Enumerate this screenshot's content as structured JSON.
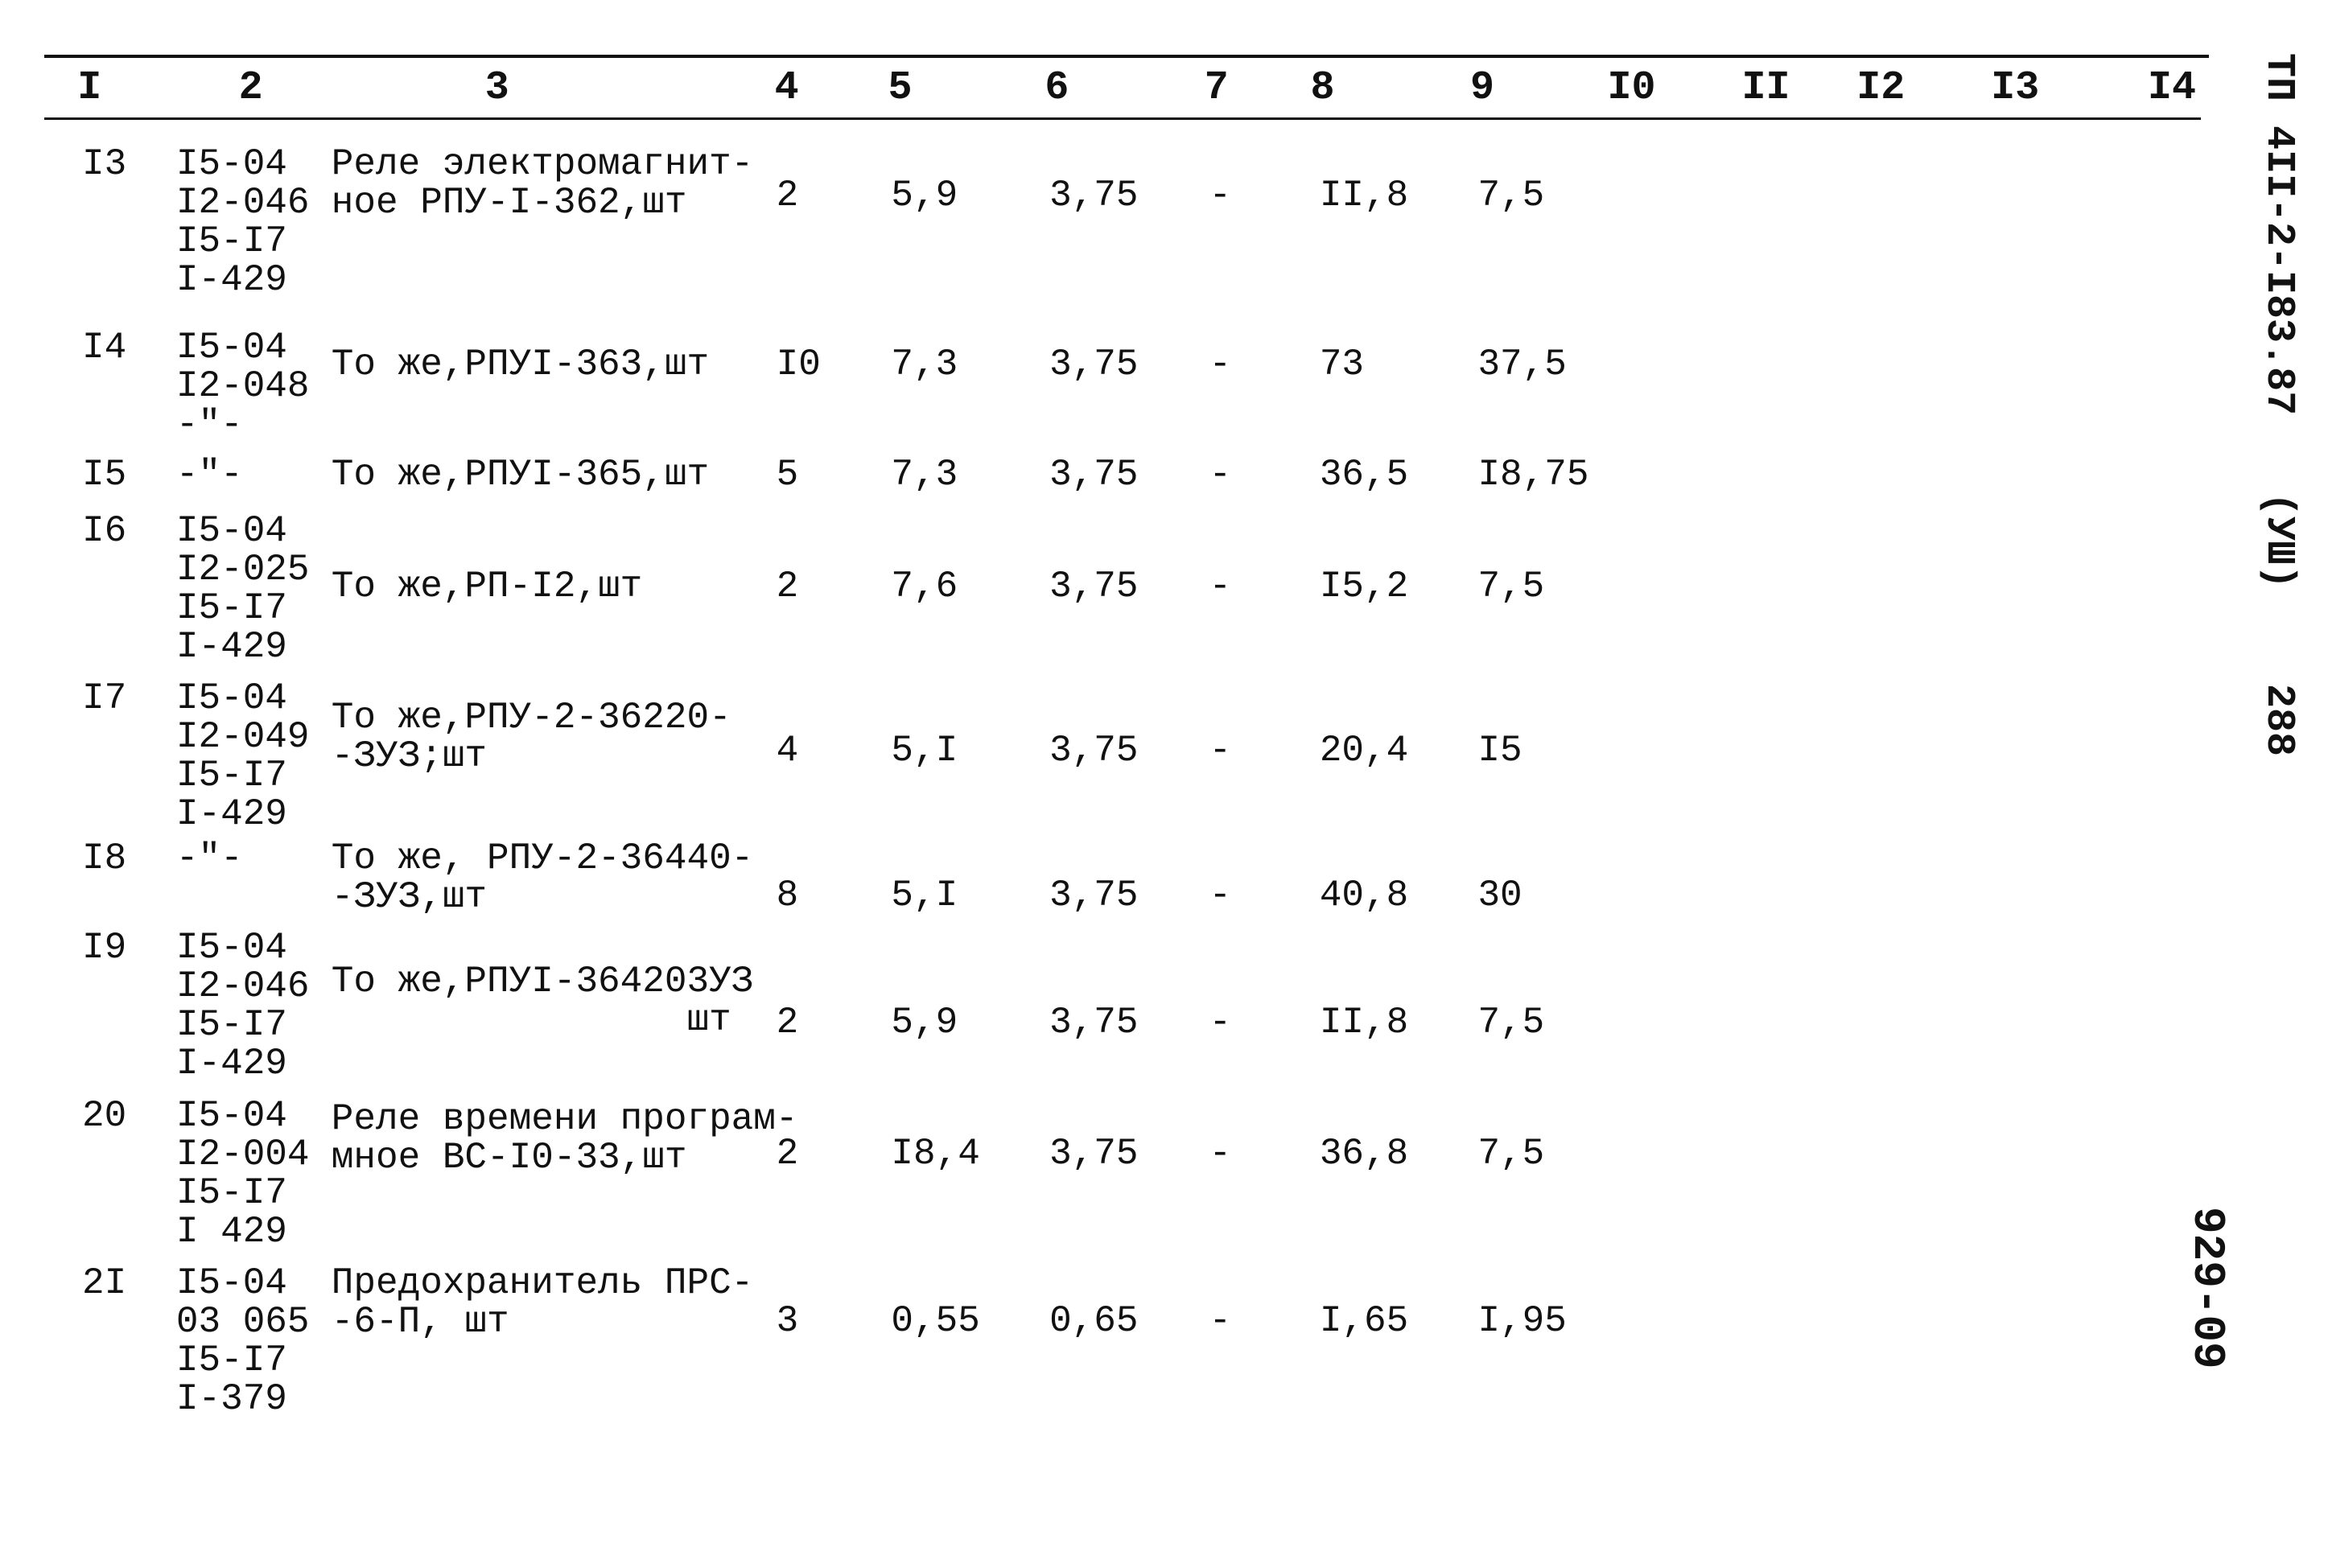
{
  "table": {
    "header": [
      "I",
      "2",
      "3",
      "4",
      "5",
      "6",
      "7",
      "8",
      "9",
      "I0",
      "II",
      "I2",
      "I3",
      "I4"
    ],
    "rows": [
      [
        "I3",
        "I5-04\nI2-046\nI5-I7\nI-429",
        "Реле электромагнит-\nное РПУ-I-362,шт",
        "2",
        "5,9",
        "3,75",
        "-",
        "II,8",
        "7,5"
      ],
      [
        "I4",
        "I5-04\nI2-048\n-\"-",
        "То же,РПУI-363,шт",
        "I0",
        "7,3",
        "3,75",
        "-",
        "73",
        "37,5"
      ],
      [
        "I5",
        "-\"-",
        "То же,РПУI-365,шт",
        "5",
        "7,3",
        "3,75",
        "-",
        "36,5",
        "I8,75"
      ],
      [
        "I6",
        "I5-04\nI2-025\nI5-I7\nI-429",
        "То же,РП-I2,шт",
        "2",
        "7,6",
        "3,75",
        "-",
        "I5,2",
        "7,5"
      ],
      [
        "I7",
        "I5-04\nI2-049\nI5-I7\nI-429",
        "То же,РПУ-2-36220-\n-ЗУЗ;шт",
        "4",
        "5,I",
        "3,75",
        "-",
        "20,4",
        "I5"
      ],
      [
        "I8",
        "-\"-",
        "То же, РПУ-2-36440-\n-ЗУЗ,шт",
        "8",
        "5,I",
        "3,75",
        "-",
        "40,8",
        "30"
      ],
      [
        "I9",
        "I5-04\nI2-046\nI5-I7\nI-429",
        "То же,РПУI-364203УЗ\n                шт",
        "2",
        "5,9",
        "3,75",
        "-",
        "II,8",
        "7,5"
      ],
      [
        "20",
        "I5-04\nI2-004\nI5-I7\nI 429",
        "Реле времени програм-\nмное ВС-I0-33,шт",
        "2",
        "I8,4",
        "3,75",
        "-",
        "36,8",
        "7,5"
      ],
      [
        "2I",
        "I5-04\n03 065\nI5-I7\nI-379",
        "Предохранитель ПРС-\n-6-П, шт",
        "3",
        "0,55",
        "0,65",
        "-",
        "I,65",
        "I,95"
      ]
    ]
  },
  "margin": {
    "code": "ТП 4II-2-I83.87",
    "sheet": "(УШ)",
    "page": "288",
    "number": "929-09"
  }
}
